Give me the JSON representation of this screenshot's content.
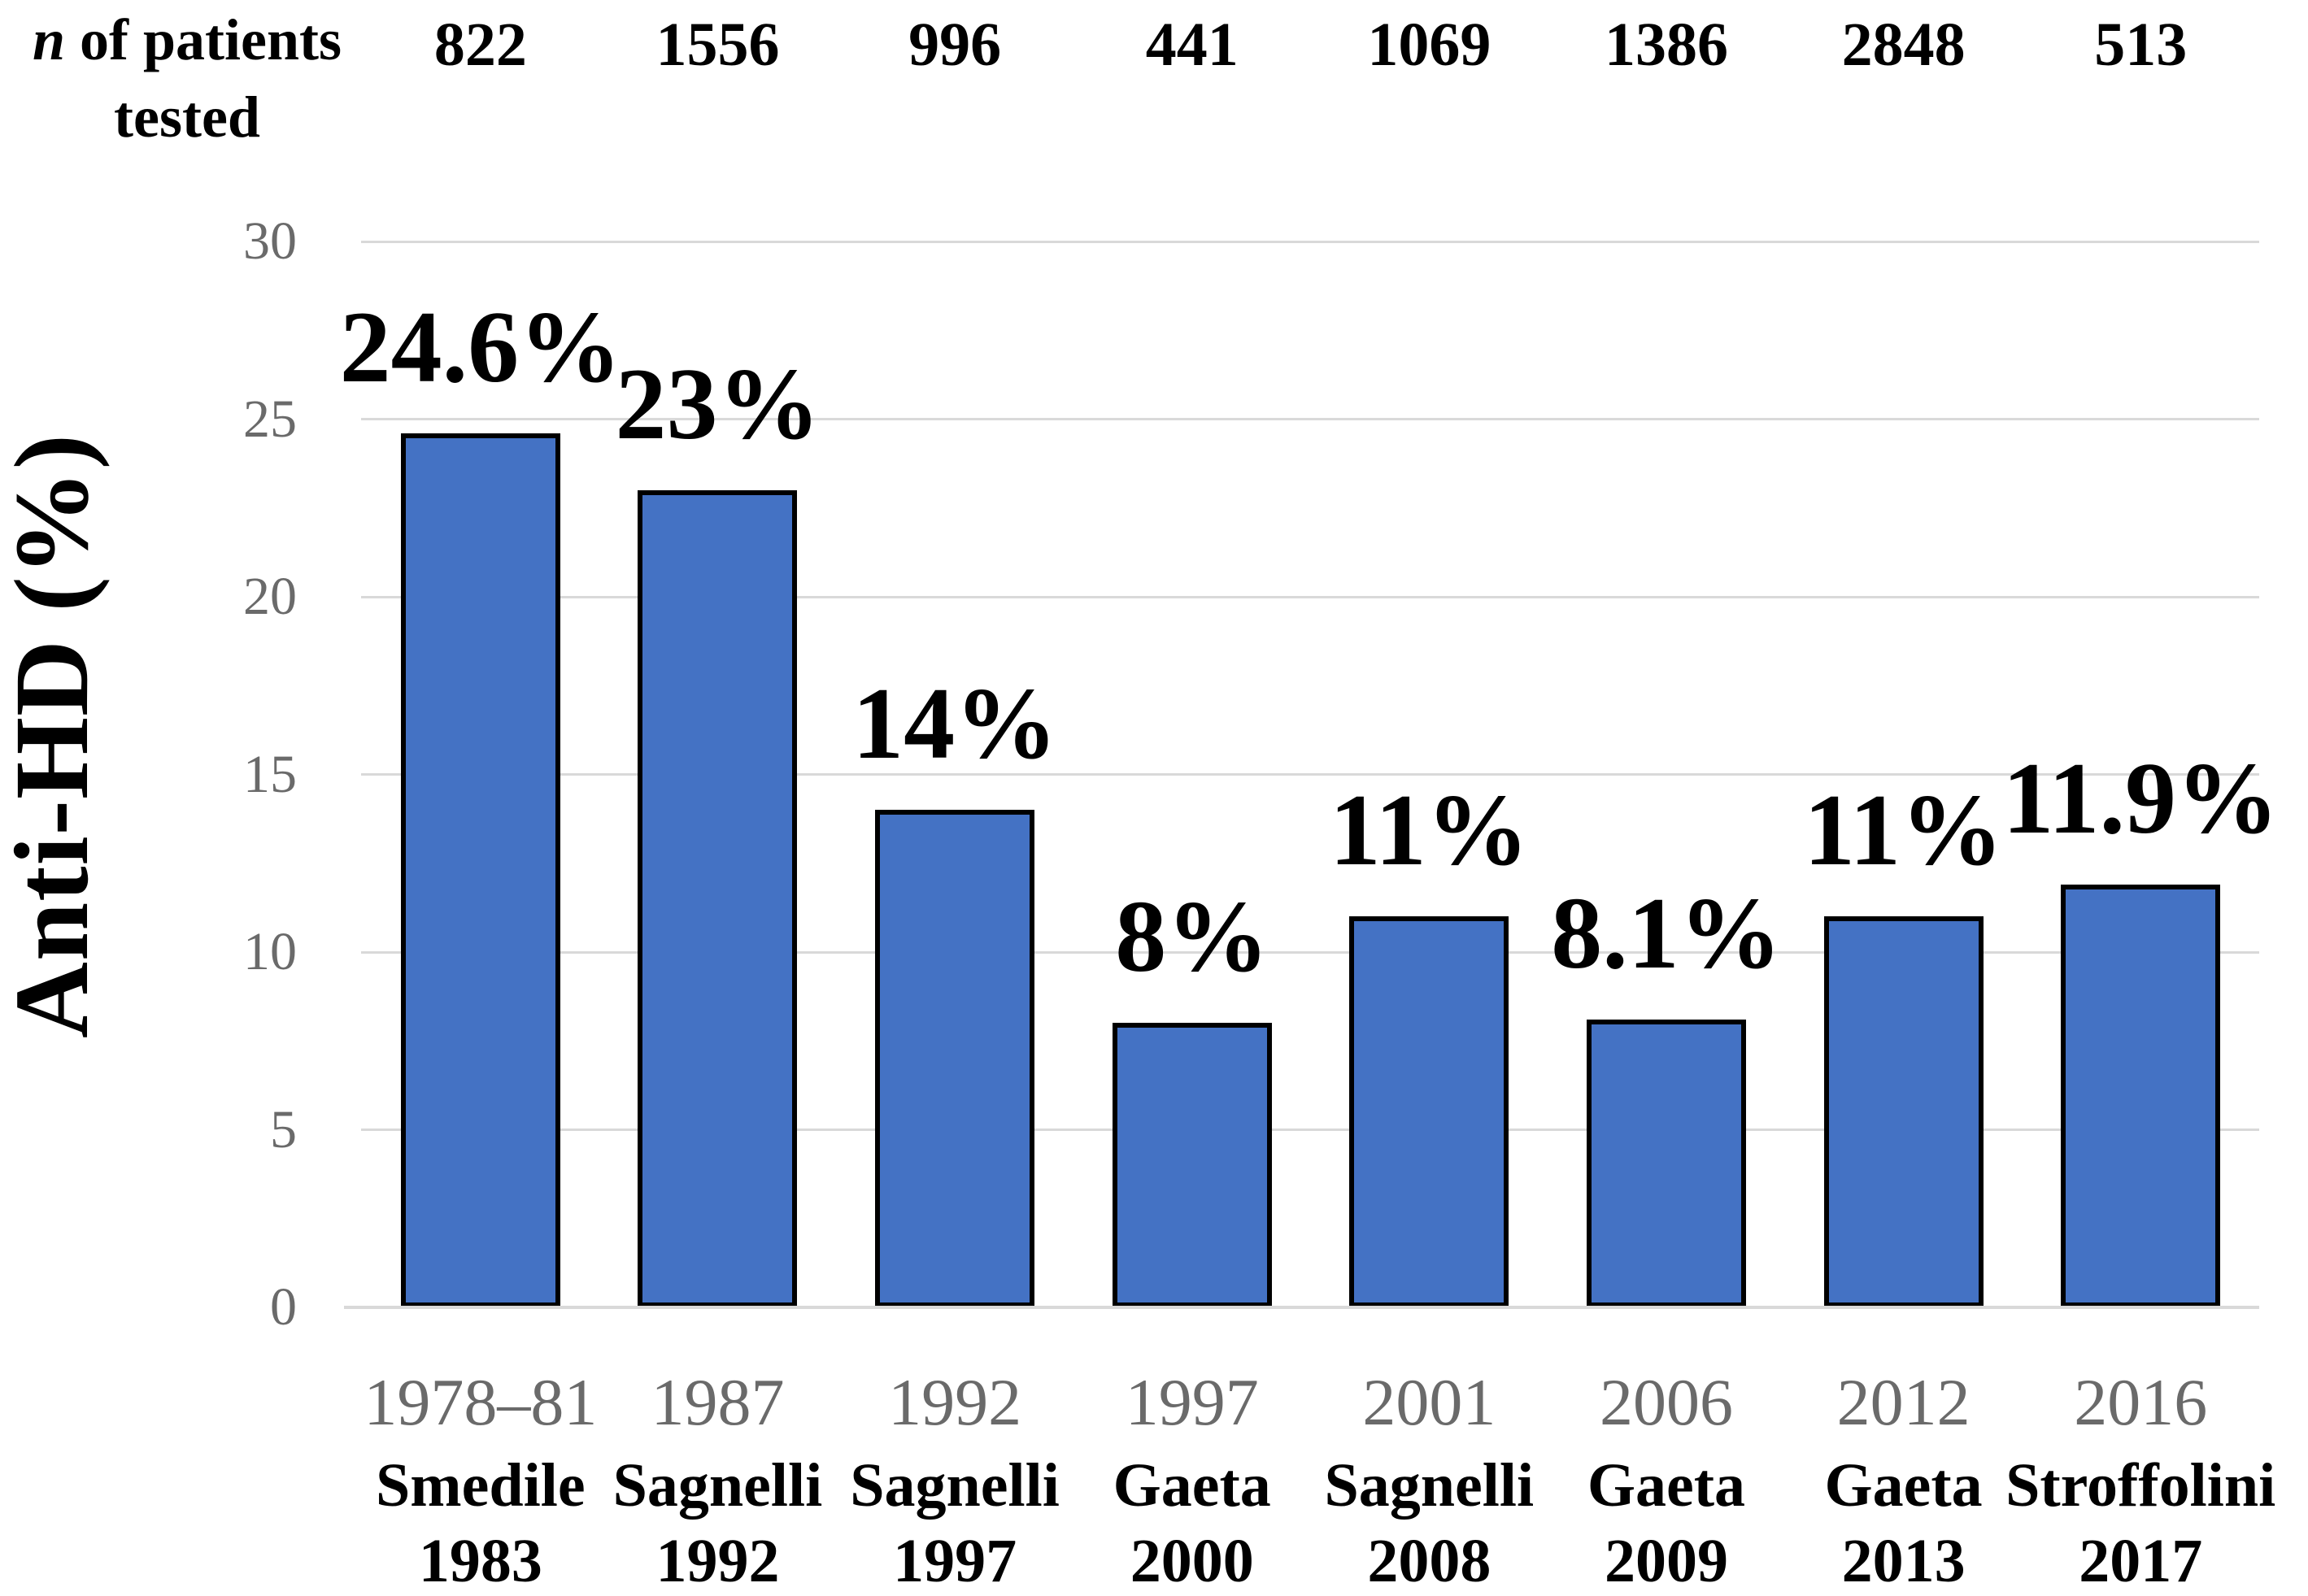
{
  "header": {
    "n_italic": "n",
    "n_rest": " of patients",
    "line2": "tested"
  },
  "y_axis": {
    "title": "Anti-HD (%)",
    "tick_labels": [
      "30",
      "25",
      "20",
      "15",
      "10",
      "5",
      "0"
    ]
  },
  "colors": {
    "bar_fill": "#4472C4",
    "bar_border": "#000000",
    "gridline": "#D9D9D9",
    "tick_mark": "#D9D9D9",
    "axis_text": "#6A6A6A",
    "label_text": "#000000"
  },
  "chart_data": {
    "type": "bar",
    "title": "",
    "xlabel": "",
    "ylabel": "Anti-HD (%)",
    "ylim": [
      0,
      30
    ],
    "y_tick_step": 5,
    "grid": true,
    "legend": false,
    "n_row_header": "n of patients tested",
    "categories": [
      "1978–81",
      "1987",
      "1992",
      "1997",
      "2001",
      "2006",
      "2012",
      "2016"
    ],
    "values": [
      24.6,
      23,
      14,
      8,
      11,
      8.1,
      11,
      11.9
    ],
    "columns": [
      {
        "n": "822",
        "value": 24.6,
        "label": "24.6%",
        "year": "1978–81",
        "study": "Smedile",
        "study_year": "1983"
      },
      {
        "n": "1556",
        "value": 23,
        "label": "23%",
        "year": "1987",
        "study": "Sagnelli",
        "study_year": "1992"
      },
      {
        "n": "996",
        "value": 14,
        "label": "14%",
        "year": "1992",
        "study": "Sagnelli",
        "study_year": "1997"
      },
      {
        "n": "441",
        "value": 8,
        "label": "8%",
        "year": "1997",
        "study": "Gaeta",
        "study_year": "2000"
      },
      {
        "n": "1069",
        "value": 11,
        "label": "11%",
        "year": "2001",
        "study": "Sagnelli",
        "study_year": "2008"
      },
      {
        "n": "1386",
        "value": 8.1,
        "label": "8.1%",
        "year": "2006",
        "study": "Gaeta",
        "study_year": "2009"
      },
      {
        "n": "2848",
        "value": 11,
        "label": "11%",
        "year": "2012",
        "study": "Gaeta",
        "study_year": "2013"
      },
      {
        "n": "513",
        "value": 11.9,
        "label": "11.9%",
        "year": "2016",
        "study": "Stroffolini",
        "study_year": "2017"
      }
    ]
  }
}
